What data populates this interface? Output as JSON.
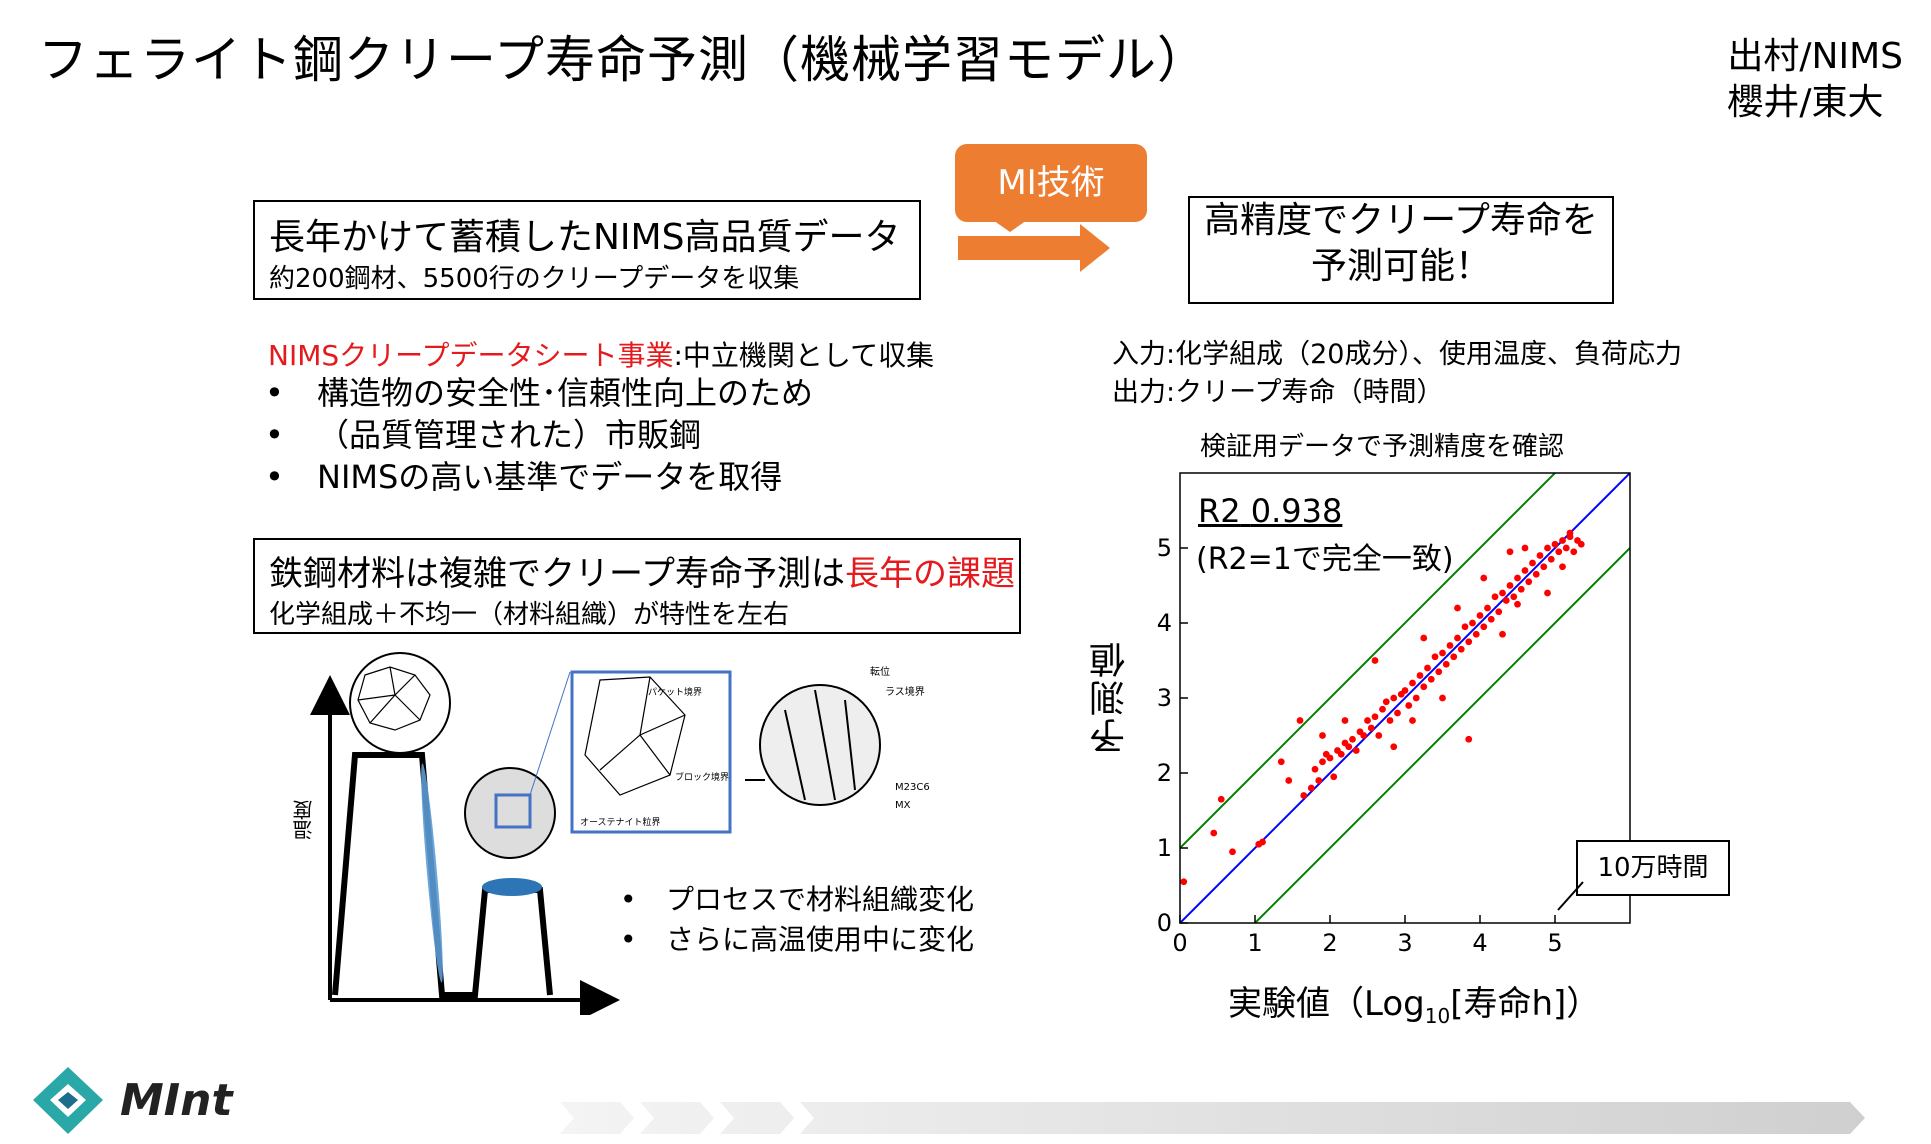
{
  "title": "フェライト鋼クリープ寿命予測（機械学習モデル）",
  "credits": [
    "出村/NIMS",
    "櫻井/東大"
  ],
  "data_box": {
    "line1": "長年かけて蓄積したNIMS高品質データ",
    "line2": "約200鋼材、5500行のクリープデータを収集"
  },
  "mi_badge": "MI技術",
  "result_box": {
    "line1": "高精度でクリープ寿命を",
    "line2": "予測可能！"
  },
  "sheet": {
    "highlight": "NIMSクリープデータシート事業",
    "rest": ":中立機関として収集"
  },
  "bullets": [
    "構造物の安全性･信頼性向上のため",
    "（品質管理された）市販鋼",
    "NIMSの高い基準でデータを取得"
  ],
  "challenge_box": {
    "line1_pre": "鉄鋼材料は複雑でクリープ寿命予測は",
    "line1_red": "長年の課題",
    "line2": "化学組成＋不均一（材料組織）が特性を左右"
  },
  "process_bullets": [
    "プロセスで材料組織変化",
    "さらに高温使用中に変化"
  ],
  "diagram_labels": {
    "temperature": "温度",
    "packet": "パケット境界",
    "block": "ブロック境界",
    "austenite": "オーステナイト粒界",
    "dislocation": "転位",
    "lath": "ラス境界",
    "m23c6": "M23C6",
    "mx": "MX"
  },
  "io": {
    "input": "入力:化学組成（20成分）、使用温度、負荷応力",
    "output": "出力:クリープ寿命（時間）"
  },
  "verify_label": "検証用データで予測精度を確認",
  "r2_label": "R2",
  "r2_value": "0.938",
  "r2_note": "(R2=1で完全一致)",
  "callout": "10万時間",
  "chart_data": {
    "type": "scatter",
    "xlabel": "実験値（Log10[寿命h]）",
    "ylabel": "予測値",
    "xlim": [
      0,
      6
    ],
    "ylim": [
      0,
      6
    ],
    "xticks": [
      "0",
      "1",
      "2",
      "3",
      "4",
      "5"
    ],
    "yticks": [
      "0",
      "1",
      "2",
      "3",
      "4",
      "5"
    ],
    "lines": [
      {
        "kind": "identity",
        "color": "#0000ff",
        "offset": 0
      },
      {
        "kind": "band",
        "color": "#008000",
        "offset": 1
      },
      {
        "kind": "band",
        "color": "#008000",
        "offset": -1
      }
    ],
    "point_color": "#ff0000",
    "points": [
      [
        0.05,
        0.55
      ],
      [
        0.45,
        1.2
      ],
      [
        0.55,
        1.65
      ],
      [
        0.7,
        0.95
      ],
      [
        1.05,
        1.05
      ],
      [
        1.1,
        1.08
      ],
      [
        1.35,
        2.15
      ],
      [
        1.45,
        1.9
      ],
      [
        1.6,
        2.7
      ],
      [
        1.65,
        1.7
      ],
      [
        1.75,
        1.8
      ],
      [
        1.8,
        2.05
      ],
      [
        1.85,
        1.9
      ],
      [
        1.9,
        2.15
      ],
      [
        1.95,
        2.25
      ],
      [
        2.0,
        2.2
      ],
      [
        2.05,
        1.95
      ],
      [
        2.1,
        2.3
      ],
      [
        2.15,
        2.25
      ],
      [
        2.2,
        2.4
      ],
      [
        2.25,
        2.35
      ],
      [
        2.3,
        2.45
      ],
      [
        2.35,
        2.3
      ],
      [
        2.4,
        2.55
      ],
      [
        2.45,
        2.5
      ],
      [
        2.5,
        2.7
      ],
      [
        2.55,
        2.6
      ],
      [
        2.6,
        2.75
      ],
      [
        2.65,
        2.5
      ],
      [
        2.7,
        2.85
      ],
      [
        2.75,
        2.95
      ],
      [
        2.8,
        2.7
      ],
      [
        2.85,
        3.0
      ],
      [
        2.9,
        2.8
      ],
      [
        2.95,
        3.05
      ],
      [
        3.0,
        3.1
      ],
      [
        3.05,
        2.9
      ],
      [
        3.1,
        3.2
      ],
      [
        3.15,
        3.0
      ],
      [
        3.2,
        3.3
      ],
      [
        3.25,
        3.15
      ],
      [
        3.3,
        3.4
      ],
      [
        3.35,
        3.25
      ],
      [
        3.4,
        3.55
      ],
      [
        3.45,
        3.35
      ],
      [
        3.5,
        3.6
      ],
      [
        3.55,
        3.45
      ],
      [
        3.6,
        3.7
      ],
      [
        3.65,
        3.55
      ],
      [
        3.7,
        3.8
      ],
      [
        3.75,
        3.65
      ],
      [
        3.8,
        3.95
      ],
      [
        3.85,
        3.75
      ],
      [
        3.9,
        4.0
      ],
      [
        3.95,
        3.85
      ],
      [
        4.0,
        4.1
      ],
      [
        4.05,
        3.95
      ],
      [
        4.1,
        4.2
      ],
      [
        4.15,
        4.05
      ],
      [
        4.2,
        4.35
      ],
      [
        4.25,
        4.15
      ],
      [
        4.3,
        4.4
      ],
      [
        4.35,
        4.3
      ],
      [
        4.4,
        4.5
      ],
      [
        4.45,
        4.35
      ],
      [
        4.5,
        4.6
      ],
      [
        4.55,
        4.45
      ],
      [
        4.6,
        4.7
      ],
      [
        4.65,
        4.55
      ],
      [
        4.7,
        4.8
      ],
      [
        4.75,
        4.65
      ],
      [
        4.8,
        4.9
      ],
      [
        4.85,
        4.75
      ],
      [
        4.9,
        5.0
      ],
      [
        4.95,
        4.85
      ],
      [
        5.0,
        5.05
      ],
      [
        5.05,
        4.95
      ],
      [
        5.1,
        5.1
      ],
      [
        5.15,
        5.0
      ],
      [
        5.2,
        5.15
      ],
      [
        5.25,
        4.95
      ],
      [
        5.3,
        5.1
      ],
      [
        5.35,
        5.05
      ],
      [
        2.6,
        3.5
      ],
      [
        2.85,
        2.35
      ],
      [
        3.25,
        3.8
      ],
      [
        3.5,
        3.0
      ],
      [
        3.85,
        2.45
      ],
      [
        4.05,
        4.6
      ],
      [
        4.3,
        3.85
      ],
      [
        4.6,
        5.0
      ],
      [
        4.9,
        4.4
      ],
      [
        5.1,
        4.75
      ],
      [
        5.2,
        5.2
      ],
      [
        4.4,
        4.95
      ],
      [
        3.1,
        2.7
      ],
      [
        2.2,
        2.7
      ],
      [
        1.9,
        2.5
      ],
      [
        3.7,
        4.2
      ],
      [
        4.5,
        4.25
      ]
    ]
  },
  "logo": "MInt"
}
